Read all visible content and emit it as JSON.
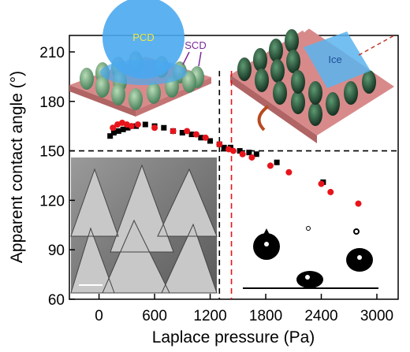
{
  "chart_data": {
    "type": "scatter",
    "xlabel": "Laplace pressure (Pa)",
    "ylabel": "Apparent contact angle (°)",
    "xlim": [
      -320,
      3230
    ],
    "ylim": [
      60,
      220
    ],
    "xticks": [
      0,
      600,
      1200,
      1800,
      2400,
      3000
    ],
    "yticks": [
      60,
      90,
      120,
      150,
      180,
      210
    ],
    "series": [
      {
        "color": "#000000",
        "marker": "square",
        "x": [
          120,
          160,
          210,
          260,
          310,
          400,
          500,
          600,
          700,
          800,
          900,
          1000,
          1100,
          1200,
          1300,
          1350,
          1420,
          1520,
          1620,
          1700,
          1920,
          2420
        ],
        "values": [
          159,
          161,
          162,
          163,
          164,
          165,
          166,
          165,
          164,
          162,
          161,
          160,
          158,
          156,
          154,
          152,
          152,
          150,
          149,
          148,
          143,
          131
        ]
      },
      {
        "color": "#e8141b",
        "marker": "circle",
        "x": [
          150,
          200,
          250,
          300,
          350,
          420,
          600,
          800,
          950,
          1050,
          1150,
          1300,
          1400,
          1450,
          1550,
          1650,
          1850,
          2050,
          2400,
          2500,
          2800
        ],
        "values": [
          164,
          166,
          167,
          166,
          165,
          166,
          164,
          162,
          162,
          160,
          158,
          154,
          151,
          150,
          148,
          146,
          141,
          137,
          130,
          125,
          118
        ]
      }
    ],
    "reference_lines": [
      {
        "axis": "y",
        "value": 150,
        "color": "#000000"
      },
      {
        "axis": "x",
        "value": 1300,
        "color": "#000000"
      },
      {
        "axis": "x",
        "value": 1430,
        "color": "#e8141b"
      }
    ],
    "annotations": [
      "PCD",
      "SCD",
      "Ice"
    ]
  }
}
